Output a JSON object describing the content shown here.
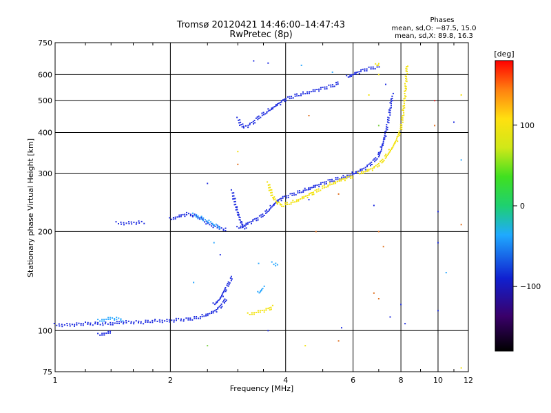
{
  "chart_data": {
    "type": "scatter",
    "title": "Tromsø 20120421 14:46:00–14:47:43",
    "subtitle": "RwPretec (8p)",
    "xlabel": "Frequency [MHz]",
    "ylabel": "Stationary phase Virtual Height [km]",
    "x_scale": "log",
    "y_scale": "log",
    "xlim": [
      1,
      12
    ],
    "ylim": [
      75,
      750
    ],
    "x_ticks": [
      1,
      2,
      4,
      6,
      8,
      10,
      12
    ],
    "y_ticks": [
      75,
      100,
      200,
      300,
      400,
      500,
      600,
      750
    ],
    "grid": true,
    "phase_stats": {
      "heading": "Phases",
      "line_o": "mean, sd,O: −87.5, 15.0",
      "line_x": "mean, sd,X:  89.8, 16.3"
    },
    "colorbar": {
      "label": "[deg]",
      "range": [
        -180,
        180
      ],
      "ticks": [
        100,
        0,
        -100
      ],
      "tick_labels": [
        "100",
        "0",
        "−100"
      ]
    },
    "series": [
      {
        "traces": [
          {
            "x": [
              1.0,
              1.1,
              1.2,
              1.3,
              1.4,
              1.5,
              1.6,
              1.7,
              1.8,
              1.9,
              2.0,
              2.1,
              2.2,
              2.3,
              2.4,
              2.5,
              2.6,
              2.7,
              2.8
            ],
            "y": [
              104,
              104,
              105,
              105,
              105,
              106,
              106,
              106,
              107,
              107,
              107,
              108,
              108,
              109,
              110,
              112,
              114,
              118,
              125
            ]
          },
          {
            "x": [
              2.6,
              2.7,
              2.75,
              2.8,
              2.85,
              2.9
            ],
            "y": [
              120,
              125,
              130,
              135,
              140,
              145
            ]
          },
          {
            "x": [
              1.45,
              1.55,
              1.65,
              1.7
            ],
            "y": [
              212,
              212,
              213,
              213
            ]
          },
          {
            "x": [
              2.0,
              2.1,
              2.2,
              2.3,
              2.4,
              2.5,
              2.6,
              2.7,
              2.8
            ],
            "y": [
              218,
              222,
              226,
              224,
              220,
              212,
              208,
              205,
              202
            ]
          },
          {
            "x": [
              2.9,
              2.95,
              3.0,
              3.05,
              3.1,
              3.15
            ],
            "y": [
              265,
              245,
              228,
              215,
              208,
              205
            ]
          },
          {
            "x": [
              3.0,
              3.1,
              3.2,
              3.3,
              3.4,
              3.5,
              3.6,
              3.7,
              3.8,
              3.9,
              4.0,
              4.2,
              4.4,
              4.6,
              4.8,
              5.0,
              5.2,
              5.5,
              5.8,
              6.0
            ],
            "y": [
              205,
              208,
              212,
              216,
              220,
              225,
              232,
              240,
              247,
              252,
              255,
              260,
              265,
              270,
              275,
              280,
              285,
              290,
              295,
              298
            ]
          },
          {
            "x": [
              3.0,
              3.05,
              3.1,
              3.2,
              3.3,
              3.4,
              3.6,
              3.8,
              4.0,
              4.3,
              4.6,
              5.0,
              5.3,
              5.5
            ],
            "y": [
              440,
              425,
              415,
              420,
              430,
              445,
              465,
              485,
              505,
              520,
              530,
              545,
              555,
              565
            ]
          },
          {
            "x": [
              5.8,
              6.0,
              6.2,
              6.4,
              6.6,
              6.8,
              7.0
            ],
            "y": [
              590,
              600,
              610,
              620,
              625,
              630,
              635
            ]
          },
          {
            "x": [
              6.0,
              6.2,
              6.4,
              6.6,
              6.8,
              7.0,
              7.1,
              7.2,
              7.3,
              7.4,
              7.5,
              7.6
            ],
            "y": [
              300,
              305,
              310,
              318,
              328,
              340,
              355,
              375,
              400,
              430,
              470,
              520
            ]
          },
          {
            "x": [
              1.3,
              1.35,
              1.4
            ],
            "y": [
              97,
              98,
              99
            ]
          }
        ],
        "color": "#1f2de0"
      },
      {
        "traces": [
          {
            "x": [
              2.3,
              2.4,
              2.5,
              2.6,
              2.7
            ],
            "y": [
              225,
              220,
              215,
              210,
              205
            ]
          },
          {
            "x": [
              3.7,
              3.8
            ],
            "y": [
              160,
              158
            ]
          },
          {
            "x": [
              3.4,
              3.5
            ],
            "y": [
              130,
              135
            ]
          },
          {
            "x": [
              1.3,
              1.4,
              1.5
            ],
            "y": [
              107,
              109,
              108
            ]
          }
        ],
        "color": "#2aa8ff"
      },
      {
        "traces": [
          {
            "x": [
              3.2,
              3.3,
              3.4,
              3.5,
              3.6,
              3.7
            ],
            "y": [
              112,
              113,
              114,
              115,
              116,
              118
            ]
          },
          {
            "x": [
              3.6,
              3.7,
              3.8,
              3.9,
              4.0,
              4.2,
              4.4,
              4.6,
              4.8,
              5.0,
              5.5,
              6.0
            ],
            "y": [
              280,
              255,
              245,
              240,
              242,
              246,
              252,
              258,
              265,
              272,
              285,
              295
            ]
          },
          {
            "x": [
              6.2,
              6.5,
              6.8,
              7.0,
              7.2,
              7.4,
              7.6,
              7.8,
              8.0,
              8.1,
              8.2,
              8.3
            ],
            "y": [
              300,
              305,
              312,
              320,
              330,
              345,
              360,
              380,
              410,
              450,
              520,
              640
            ]
          },
          {
            "x": [
              6.9,
              7.0
            ],
            "y": [
              640,
              645
            ]
          }
        ],
        "color": "#f2e20a"
      }
    ],
    "scattered_points": [
      {
        "x": 3.3,
        "y": 660,
        "color": "#1f2de0"
      },
      {
        "x": 3.6,
        "y": 650,
        "color": "#1f2de0"
      },
      {
        "x": 4.4,
        "y": 640,
        "color": "#2aa8ff"
      },
      {
        "x": 5.3,
        "y": 610,
        "color": "#2aa8ff"
      },
      {
        "x": 3.0,
        "y": 320,
        "color": "#e07020"
      },
      {
        "x": 3.0,
        "y": 350,
        "color": "#f2e20a"
      },
      {
        "x": 2.5,
        "y": 280,
        "color": "#1f2de0"
      },
      {
        "x": 2.6,
        "y": 185,
        "color": "#2aa8ff"
      },
      {
        "x": 2.7,
        "y": 170,
        "color": "#1f2de0"
      },
      {
        "x": 3.4,
        "y": 160,
        "color": "#2aa8ff"
      },
      {
        "x": 3.6,
        "y": 100,
        "color": "#1f2de0"
      },
      {
        "x": 2.3,
        "y": 140,
        "color": "#2aa8ff"
      },
      {
        "x": 2.5,
        "y": 90,
        "color": "#7ad040"
      },
      {
        "x": 4.5,
        "y": 90,
        "color": "#f2e20a"
      },
      {
        "x": 4.6,
        "y": 250,
        "color": "#1f2de0"
      },
      {
        "x": 4.8,
        "y": 200,
        "color": "#e07020"
      },
      {
        "x": 4.6,
        "y": 450,
        "color": "#e07020"
      },
      {
        "x": 5.5,
        "y": 93,
        "color": "#e07020"
      },
      {
        "x": 5.6,
        "y": 102,
        "color": "#1f2de0"
      },
      {
        "x": 5.5,
        "y": 260,
        "color": "#e07020"
      },
      {
        "x": 6.8,
        "y": 240,
        "color": "#1f2de0"
      },
      {
        "x": 7.0,
        "y": 200,
        "color": "#e07020"
      },
      {
        "x": 7.2,
        "y": 180,
        "color": "#e07020"
      },
      {
        "x": 6.8,
        "y": 130,
        "color": "#e07020"
      },
      {
        "x": 7.0,
        "y": 125,
        "color": "#e07020"
      },
      {
        "x": 7.5,
        "y": 110,
        "color": "#1f2de0"
      },
      {
        "x": 8.0,
        "y": 120,
        "color": "#1f2de0"
      },
      {
        "x": 8.2,
        "y": 105,
        "color": "#1f2de0"
      },
      {
        "x": 9.8,
        "y": 500,
        "color": "#e02020"
      },
      {
        "x": 9.8,
        "y": 420,
        "color": "#e07020"
      },
      {
        "x": 10.0,
        "y": 230,
        "color": "#1f2de0"
      },
      {
        "x": 10.0,
        "y": 185,
        "color": "#1f2de0"
      },
      {
        "x": 10.0,
        "y": 115,
        "color": "#1f2de0"
      },
      {
        "x": 10.5,
        "y": 150,
        "color": "#2aa8ff"
      },
      {
        "x": 11.0,
        "y": 430,
        "color": "#1f2de0"
      },
      {
        "x": 11.5,
        "y": 520,
        "color": "#f2e20a"
      },
      {
        "x": 11.5,
        "y": 330,
        "color": "#2aa8ff"
      },
      {
        "x": 11.5,
        "y": 210,
        "color": "#e07020"
      },
      {
        "x": 11.5,
        "y": 77,
        "color": "#f2e20a"
      },
      {
        "x": 6.6,
        "y": 520,
        "color": "#f2e20a"
      },
      {
        "x": 7.0,
        "y": 600,
        "color": "#f2e20a"
      },
      {
        "x": 7.3,
        "y": 560,
        "color": "#1f2de0"
      },
      {
        "x": 7.0,
        "y": 420,
        "color": "#7ad040"
      }
    ]
  }
}
